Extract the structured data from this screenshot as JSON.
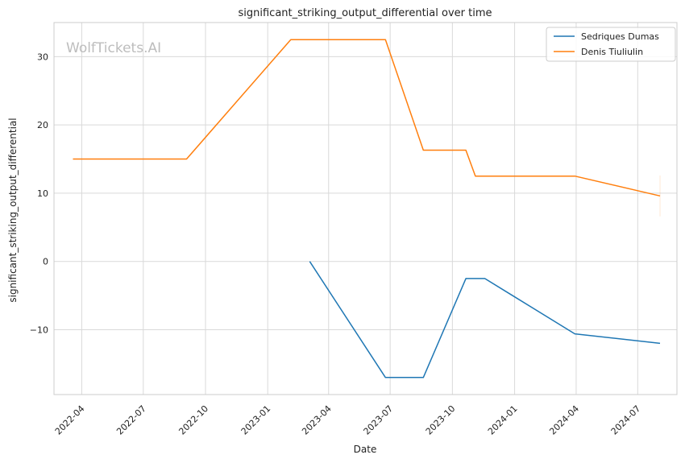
{
  "chart_data": {
    "type": "line",
    "title": "significant_striking_output_differential over time",
    "xlabel": "Date",
    "ylabel": "significant_striking_output_differential",
    "watermark": "WolfTickets.AI",
    "legend_position": "top-right",
    "grid": true,
    "x_axis": "date",
    "xlim": [
      "2022-02-19",
      "2024-08-28"
    ],
    "ylim": [
      -19.5,
      35
    ],
    "x_ticks": [
      "2022-04-01",
      "2022-07-01",
      "2022-10-01",
      "2023-01-01",
      "2023-04-01",
      "2023-07-01",
      "2023-10-01",
      "2024-01-01",
      "2024-04-01",
      "2024-07-01"
    ],
    "x_tick_labels": [
      "2022-04",
      "2022-07",
      "2022-10",
      "2023-01",
      "2023-04",
      "2023-07",
      "2023-10",
      "2024-01",
      "2024-04",
      "2024-07"
    ],
    "y_ticks": [
      -10,
      0,
      10,
      20,
      30
    ],
    "y_tick_labels": [
      "−10",
      "0",
      "10",
      "20",
      "30"
    ],
    "series": [
      {
        "name": "Sedriques Dumas",
        "color": "#1f77b4",
        "points": [
          {
            "x": "2023-03-04",
            "y": 0
          },
          {
            "x": "2023-06-24",
            "y": -17
          },
          {
            "x": "2023-08-19",
            "y": -17
          },
          {
            "x": "2023-10-21",
            "y": -2.5
          },
          {
            "x": "2023-11-18",
            "y": -2.5
          },
          {
            "x": "2024-03-30",
            "y": -10.6
          },
          {
            "x": "2024-08-03",
            "y": -12
          }
        ]
      },
      {
        "name": "Denis Tiuliulin",
        "color": "#ff7f0e",
        "points": [
          {
            "x": "2022-03-19",
            "y": 15
          },
          {
            "x": "2022-09-03",
            "y": 15
          },
          {
            "x": "2023-02-04",
            "y": 32.5
          },
          {
            "x": "2023-06-24",
            "y": 32.5
          },
          {
            "x": "2023-08-19",
            "y": 16.3
          },
          {
            "x": "2023-10-21",
            "y": 16.3
          },
          {
            "x": "2023-11-04",
            "y": 12.5
          },
          {
            "x": "2024-03-30",
            "y": 12.5
          },
          {
            "x": "2024-08-03",
            "y": 9.6
          }
        ]
      }
    ]
  }
}
